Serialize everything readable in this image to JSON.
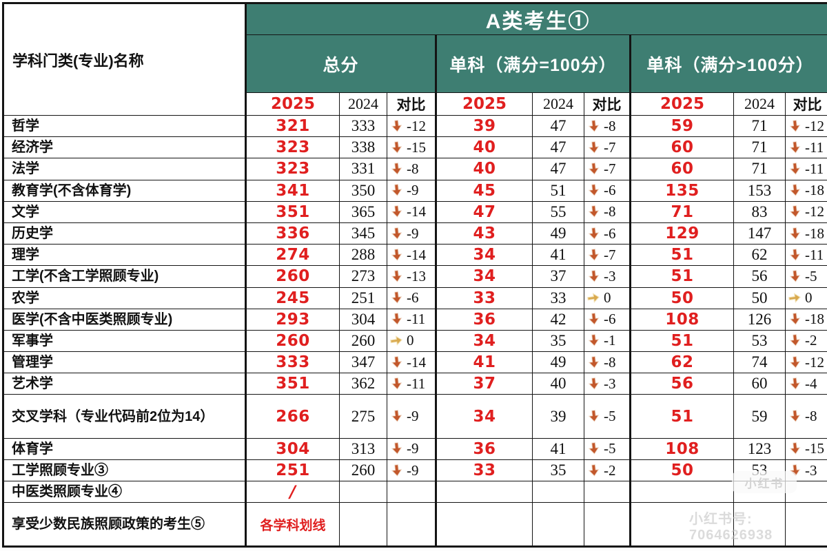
{
  "colors": {
    "teal_header": "#3E7E72",
    "accent_red": "#E01F1F",
    "grid_border": "#141414",
    "arrow_down_fill": "#C2572B",
    "arrow_down_outline": "#EED7C4",
    "arrow_flat_fill": "#D9A94E",
    "arrow_flat_outline": "#F3E3B8"
  },
  "watermark": {
    "logo_text": "小红书",
    "id_text": "小红书号: 7064626938"
  },
  "chart_data": {
    "type": "table",
    "title": "A类考生①",
    "corner_header": "学科门类(专业)名称",
    "column_groups": [
      "总分",
      "单科（满分=100分）",
      "单科（满分>100分）"
    ],
    "sub_columns": [
      "2025",
      "2024",
      "对比"
    ],
    "rows": [
      {
        "name": "哲学",
        "cells": [
          {
            "v25": "321",
            "v24": "333",
            "diff": "-12",
            "dir": "down"
          },
          {
            "v25": "39",
            "v24": "47",
            "diff": "-8",
            "dir": "down"
          },
          {
            "v25": "59",
            "v24": "71",
            "diff": "-12",
            "dir": "down"
          }
        ]
      },
      {
        "name": "经济学",
        "cells": [
          {
            "v25": "323",
            "v24": "338",
            "diff": "-15",
            "dir": "down"
          },
          {
            "v25": "40",
            "v24": "47",
            "diff": "-7",
            "dir": "down"
          },
          {
            "v25": "60",
            "v24": "71",
            "diff": "-11",
            "dir": "down"
          }
        ]
      },
      {
        "name": "法学",
        "cells": [
          {
            "v25": "323",
            "v24": "331",
            "diff": "-8",
            "dir": "down"
          },
          {
            "v25": "40",
            "v24": "47",
            "diff": "-7",
            "dir": "down"
          },
          {
            "v25": "60",
            "v24": "71",
            "diff": "-11",
            "dir": "down"
          }
        ]
      },
      {
        "name": "教育学(不含体育学)",
        "cells": [
          {
            "v25": "341",
            "v24": "350",
            "diff": "-9",
            "dir": "down"
          },
          {
            "v25": "45",
            "v24": "51",
            "diff": "-6",
            "dir": "down"
          },
          {
            "v25": "135",
            "v24": "153",
            "diff": "-18",
            "dir": "down"
          }
        ]
      },
      {
        "name": "文学",
        "cells": [
          {
            "v25": "351",
            "v24": "365",
            "diff": "-14",
            "dir": "down"
          },
          {
            "v25": "47",
            "v24": "55",
            "diff": "-8",
            "dir": "down"
          },
          {
            "v25": "71",
            "v24": "83",
            "diff": "-12",
            "dir": "down"
          }
        ]
      },
      {
        "name": "历史学",
        "cells": [
          {
            "v25": "336",
            "v24": "345",
            "diff": "-9",
            "dir": "down"
          },
          {
            "v25": "43",
            "v24": "49",
            "diff": "-6",
            "dir": "down"
          },
          {
            "v25": "129",
            "v24": "147",
            "diff": "-18",
            "dir": "down"
          }
        ]
      },
      {
        "name": "理学",
        "cells": [
          {
            "v25": "274",
            "v24": "288",
            "diff": "-14",
            "dir": "down"
          },
          {
            "v25": "34",
            "v24": "41",
            "diff": "-7",
            "dir": "down"
          },
          {
            "v25": "51",
            "v24": "62",
            "diff": "-11",
            "dir": "down"
          }
        ]
      },
      {
        "name": "工学(不含工学照顾专业)",
        "cells": [
          {
            "v25": "260",
            "v24": "273",
            "diff": "-13",
            "dir": "down"
          },
          {
            "v25": "34",
            "v24": "37",
            "diff": "-3",
            "dir": "down"
          },
          {
            "v25": "51",
            "v24": "56",
            "diff": "-5",
            "dir": "down"
          }
        ]
      },
      {
        "name": "农学",
        "cells": [
          {
            "v25": "245",
            "v24": "251",
            "diff": "-6",
            "dir": "down"
          },
          {
            "v25": "33",
            "v24": "33",
            "diff": "0",
            "dir": "flat"
          },
          {
            "v25": "50",
            "v24": "50",
            "diff": "0",
            "dir": "flat"
          }
        ]
      },
      {
        "name": "医学(不含中医类照顾专业)",
        "cells": [
          {
            "v25": "293",
            "v24": "304",
            "diff": "-11",
            "dir": "down"
          },
          {
            "v25": "36",
            "v24": "42",
            "diff": "-6",
            "dir": "down"
          },
          {
            "v25": "108",
            "v24": "126",
            "diff": "-18",
            "dir": "down"
          }
        ]
      },
      {
        "name": "军事学",
        "cells": [
          {
            "v25": "260",
            "v24": "260",
            "diff": "0",
            "dir": "flat"
          },
          {
            "v25": "34",
            "v24": "35",
            "diff": "-1",
            "dir": "down"
          },
          {
            "v25": "51",
            "v24": "53",
            "diff": "-2",
            "dir": "down"
          }
        ]
      },
      {
        "name": "管理学",
        "cells": [
          {
            "v25": "333",
            "v24": "347",
            "diff": "-14",
            "dir": "down"
          },
          {
            "v25": "41",
            "v24": "49",
            "diff": "-8",
            "dir": "down"
          },
          {
            "v25": "62",
            "v24": "74",
            "diff": "-12",
            "dir": "down"
          }
        ]
      },
      {
        "name": "艺术学",
        "cells": [
          {
            "v25": "351",
            "v24": "362",
            "diff": "-11",
            "dir": "down"
          },
          {
            "v25": "37",
            "v24": "40",
            "diff": "-3",
            "dir": "down"
          },
          {
            "v25": "56",
            "v24": "60",
            "diff": "-4",
            "dir": "down"
          }
        ]
      },
      {
        "name": "交叉学科（专业代码前2位为14）",
        "tall": true,
        "cells": [
          {
            "v25": "266",
            "v24": "275",
            "diff": "-9",
            "dir": "down"
          },
          {
            "v25": "34",
            "v24": "39",
            "diff": "-5",
            "dir": "down"
          },
          {
            "v25": "51",
            "v24": "59",
            "diff": "-8",
            "dir": "down"
          }
        ]
      },
      {
        "name": "体育学",
        "cells": [
          {
            "v25": "304",
            "v24": "313",
            "diff": "-9",
            "dir": "down"
          },
          {
            "v25": "36",
            "v24": "41",
            "diff": "-5",
            "dir": "down"
          },
          {
            "v25": "108",
            "v24": "123",
            "diff": "-15",
            "dir": "down"
          }
        ]
      },
      {
        "name": "工学照顾专业③",
        "cells": [
          {
            "v25": "251",
            "v24": "260",
            "diff": "-9",
            "dir": "down"
          },
          {
            "v25": "33",
            "v24": "35",
            "diff": "-2",
            "dir": "down"
          },
          {
            "v25": "50",
            "v24": "53",
            "diff": "-3",
            "dir": "down"
          }
        ]
      },
      {
        "name": "中医类照顾专业④",
        "cells": [
          {
            "v25": "/",
            "v24": "",
            "diff": "",
            "dir": "",
            "style": "slash"
          },
          {
            "v25": "",
            "v24": "",
            "diff": "",
            "dir": ""
          },
          {
            "v25": "",
            "v24": "",
            "diff": "",
            "dir": ""
          }
        ]
      },
      {
        "name": "享受少数民族照顾政策的考生⑤",
        "tall": true,
        "cells": [
          {
            "v25": "各学科划线",
            "v24": "",
            "diff": "",
            "dir": "",
            "style": "note"
          },
          {
            "v25": "",
            "v24": "",
            "diff": "",
            "dir": ""
          },
          {
            "v25": "",
            "v24": "",
            "diff": "",
            "dir": ""
          }
        ]
      }
    ]
  }
}
